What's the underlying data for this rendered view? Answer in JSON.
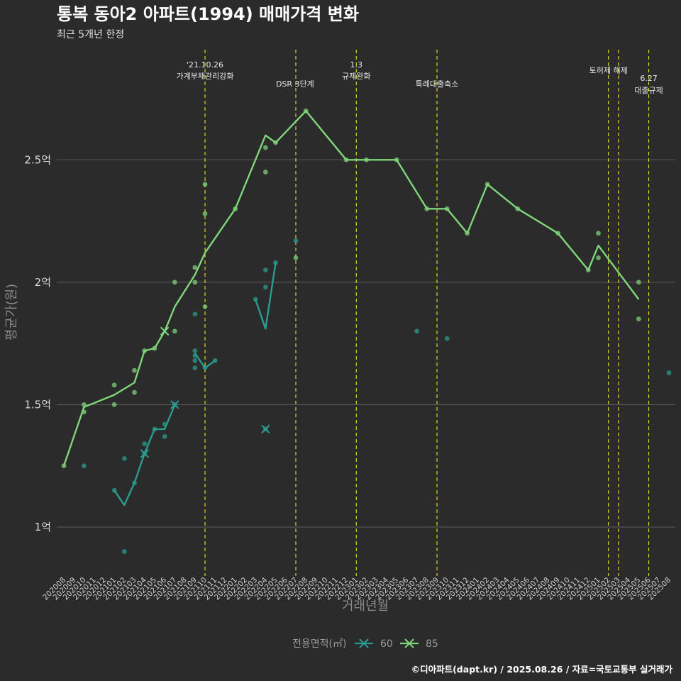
{
  "chart_data": {
    "type": "line",
    "title": "통복 동아2 아파트(1994) 매매가격 변화",
    "subtitle": "최근 5개년 한정",
    "xlabel": "거래년월",
    "ylabel": "평균가(원)",
    "caption": "©디아파트(dapt.kr) / 2025.08.26 / 자료=국토교통부 실거래가",
    "categories": [
      "202008",
      "202009",
      "202010",
      "202011",
      "202012",
      "202101",
      "202102",
      "202103",
      "202104",
      "202105",
      "202106",
      "202107",
      "202108",
      "202109",
      "202110",
      "202111",
      "202112",
      "202201",
      "202202",
      "202203",
      "202204",
      "202205",
      "202206",
      "202207",
      "202208",
      "202209",
      "202210",
      "202211",
      "202212",
      "202301",
      "202302",
      "202303",
      "202304",
      "202305",
      "202306",
      "202307",
      "202308",
      "202309",
      "202310",
      "202311",
      "202312",
      "202401",
      "202402",
      "202403",
      "202404",
      "202405",
      "202406",
      "202407",
      "202408",
      "202409",
      "202410",
      "202411",
      "202412",
      "202501",
      "202502",
      "202503",
      "202504",
      "202505",
      "202506",
      "202507",
      "202508"
    ],
    "y_ticks": [
      {
        "value": 1.0,
        "label": "1억"
      },
      {
        "value": 1.5,
        "label": "1.5억"
      },
      {
        "value": 2.0,
        "label": "2억"
      },
      {
        "value": 2.5,
        "label": "2.5억"
      }
    ],
    "ylim": [
      0.8,
      2.95
    ],
    "grid": true,
    "legend": {
      "title": "전용면적(㎡)",
      "position": "bottom"
    },
    "series": [
      {
        "name": "60",
        "color": "#2a9d8f",
        "line": [
          [
            "202101",
            1.15
          ],
          [
            "202102",
            1.09
          ],
          [
            "202103",
            1.18
          ],
          [
            "202104",
            1.3
          ],
          [
            "202105",
            1.4
          ],
          [
            "202106",
            1.4
          ],
          [
            "202107",
            1.5
          ],
          null,
          [
            "202109",
            1.71
          ],
          [
            "202110",
            1.65
          ],
          [
            "202111",
            1.68
          ],
          null,
          [
            "202203",
            1.93
          ],
          [
            "202204",
            1.81
          ],
          [
            "202205",
            2.08
          ]
        ],
        "points": [
          [
            "202010",
            1.25
          ],
          [
            "202101",
            1.15
          ],
          [
            "202102",
            1.28
          ],
          [
            "202102",
            0.9
          ],
          [
            "202103",
            1.18
          ],
          [
            "202104",
            1.34
          ],
          [
            "202104",
            1.3
          ],
          [
            "202105",
            1.4
          ],
          [
            "202106",
            1.42
          ],
          [
            "202106",
            1.37
          ],
          [
            "202107",
            1.5
          ],
          [
            "202109",
            1.87
          ],
          [
            "202109",
            1.72
          ],
          [
            "202109",
            1.7
          ],
          [
            "202109",
            1.68
          ],
          [
            "202109",
            1.65
          ],
          [
            "202110",
            1.65
          ],
          [
            "202111",
            1.68
          ],
          [
            "202203",
            1.93
          ],
          [
            "202204",
            2.05
          ],
          [
            "202204",
            1.98
          ],
          [
            "202204",
            1.4
          ],
          [
            "202205",
            2.08
          ],
          [
            "202207",
            2.17
          ],
          [
            "202307",
            1.8
          ],
          [
            "202310",
            1.77
          ],
          [
            "202508",
            1.63
          ]
        ],
        "x_marks": [
          [
            "202104",
            1.3
          ],
          [
            "202107",
            1.5
          ],
          [
            "202204",
            1.4
          ]
        ]
      },
      {
        "name": "85",
        "color": "#7fd67a",
        "line": [
          [
            "202008",
            1.25
          ],
          [
            "202010",
            1.49
          ],
          [
            "202101",
            1.54
          ],
          [
            "202103",
            1.59
          ],
          [
            "202104",
            1.72
          ],
          [
            "202105",
            1.73
          ],
          [
            "202106",
            1.8
          ],
          [
            "202107",
            1.9
          ],
          [
            "202109",
            2.03
          ],
          [
            "202110",
            2.12
          ],
          [
            "202201",
            2.3
          ],
          [
            "202204",
            2.6
          ],
          [
            "202205",
            2.57
          ],
          [
            "202208",
            2.7
          ],
          [
            "202212",
            2.5
          ],
          [
            "202302",
            2.5
          ],
          [
            "202305",
            2.5
          ],
          [
            "202308",
            2.3
          ],
          [
            "202310",
            2.3
          ],
          [
            "202312",
            2.2
          ],
          [
            "202402",
            2.4
          ],
          [
            "202405",
            2.3
          ],
          [
            "202409",
            2.2
          ],
          [
            "202412",
            2.05
          ],
          [
            "202501",
            2.15
          ],
          [
            "202505",
            1.93
          ]
        ],
        "points": [
          [
            "202008",
            1.25
          ],
          [
            "202010",
            1.5
          ],
          [
            "202010",
            1.47
          ],
          [
            "202101",
            1.58
          ],
          [
            "202101",
            1.5
          ],
          [
            "202103",
            1.64
          ],
          [
            "202103",
            1.55
          ],
          [
            "202104",
            1.72
          ],
          [
            "202105",
            1.73
          ],
          [
            "202107",
            2.0
          ],
          [
            "202107",
            1.8
          ],
          [
            "202109",
            2.06
          ],
          [
            "202109",
            2.0
          ],
          [
            "202110",
            2.4
          ],
          [
            "202110",
            2.28
          ],
          [
            "202110",
            1.9
          ],
          [
            "202201",
            2.3
          ],
          [
            "202204",
            2.55
          ],
          [
            "202204",
            2.45
          ],
          [
            "202205",
            2.57
          ],
          [
            "202207",
            2.1
          ],
          [
            "202208",
            2.7
          ],
          [
            "202212",
            2.5
          ],
          [
            "202302",
            2.5
          ],
          [
            "202305",
            2.5
          ],
          [
            "202308",
            2.3
          ],
          [
            "202310",
            2.3
          ],
          [
            "202312",
            2.2
          ],
          [
            "202402",
            2.4
          ],
          [
            "202405",
            2.3
          ],
          [
            "202409",
            2.2
          ],
          [
            "202412",
            2.05
          ],
          [
            "202501",
            2.2
          ],
          [
            "202501",
            2.1
          ],
          [
            "202505",
            2.0
          ],
          [
            "202505",
            1.85
          ]
        ],
        "x_marks": [
          [
            "202106",
            1.8
          ]
        ]
      }
    ],
    "events": [
      {
        "x": "202110",
        "lines": [
          "'21.10.26",
          "가계부채관리강화"
        ]
      },
      {
        "x": "202207",
        "lines": [
          "DSR 3단계"
        ]
      },
      {
        "x": "202301",
        "lines": [
          "1.3",
          "규제완화"
        ]
      },
      {
        "x": "202309",
        "lines": [
          "특례대출축소"
        ]
      },
      {
        "x": "202502",
        "lines": [
          "토허제 해제"
        ]
      },
      {
        "x": "202503",
        "lines": []
      },
      {
        "x": "202506",
        "lines": [
          "6.27",
          "대출규제"
        ]
      }
    ]
  }
}
